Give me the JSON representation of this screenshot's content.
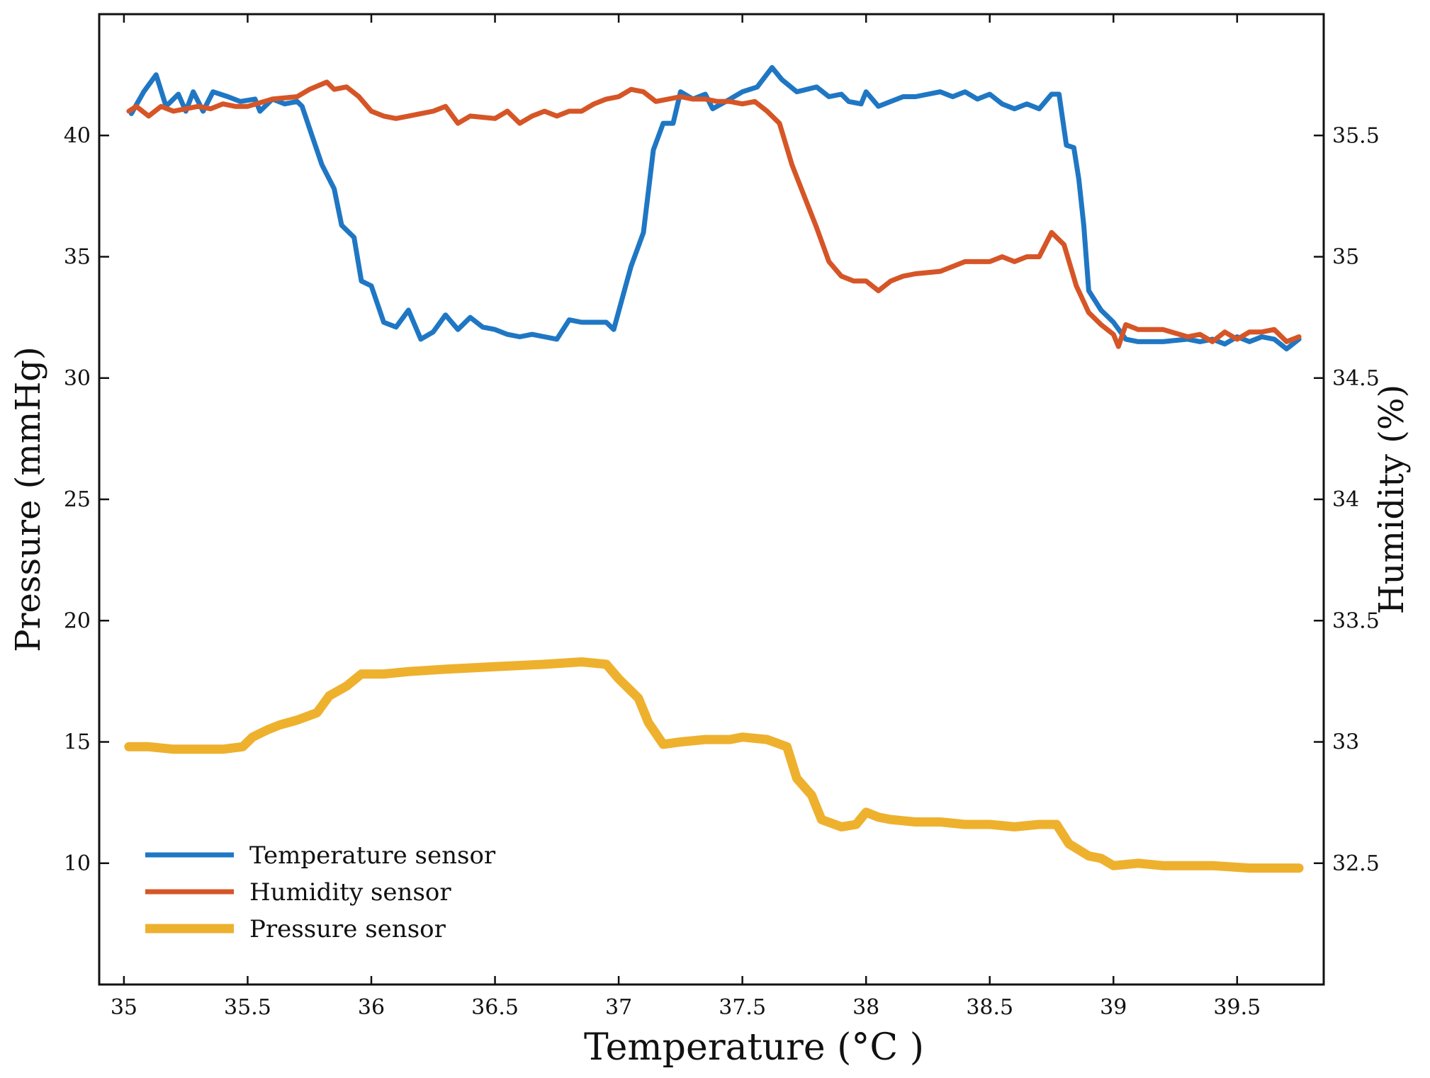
{
  "chart_data": {
    "type": "line",
    "xlabel": "Temperature (°C )",
    "ylabel_left": "Pressure (mmHg)",
    "ylabel_right": "Humidity (%)",
    "xlim": [
      34.9,
      39.85
    ],
    "ylim_left": [
      5,
      45
    ],
    "ylim_right": [
      32,
      36
    ],
    "x_ticks": [
      35,
      35.5,
      36,
      36.5,
      37,
      37.5,
      38,
      38.5,
      39,
      39.5
    ],
    "x_tick_labels": [
      "35",
      "35.5",
      "36",
      "36.5",
      "37",
      "37.5",
      "38",
      "38.5",
      "39",
      "39.5"
    ],
    "y_left_ticks": [
      10,
      15,
      20,
      25,
      30,
      35,
      40
    ],
    "y_left_tick_labels": [
      "10",
      "15",
      "20",
      "25",
      "30",
      "35",
      "40"
    ],
    "y_right_ticks": [
      32.5,
      33,
      33.5,
      34,
      34.5,
      35,
      35.5
    ],
    "y_right_tick_labels": [
      "32.5",
      "33",
      "33.5",
      "34",
      "34.5",
      "35",
      "35.5"
    ],
    "legend_position": "bottom-left",
    "series": [
      {
        "name": "Temperature sensor",
        "axis": "left",
        "color": "#1f77c4",
        "points": [
          [
            35.03,
            40.9
          ],
          [
            35.08,
            41.8
          ],
          [
            35.13,
            42.5
          ],
          [
            35.17,
            41.2
          ],
          [
            35.22,
            41.7
          ],
          [
            35.25,
            41.0
          ],
          [
            35.28,
            41.8
          ],
          [
            35.32,
            41.0
          ],
          [
            35.36,
            41.8
          ],
          [
            35.42,
            41.6
          ],
          [
            35.47,
            41.4
          ],
          [
            35.53,
            41.5
          ],
          [
            35.55,
            41.0
          ],
          [
            35.6,
            41.5
          ],
          [
            35.65,
            41.3
          ],
          [
            35.7,
            41.4
          ],
          [
            35.72,
            41.2
          ],
          [
            35.76,
            40.0
          ],
          [
            35.8,
            38.8
          ],
          [
            35.85,
            37.8
          ],
          [
            35.88,
            36.3
          ],
          [
            35.93,
            35.8
          ],
          [
            35.96,
            34.0
          ],
          [
            36.0,
            33.8
          ],
          [
            36.05,
            32.3
          ],
          [
            36.1,
            32.1
          ],
          [
            36.15,
            32.8
          ],
          [
            36.2,
            31.6
          ],
          [
            36.25,
            31.9
          ],
          [
            36.3,
            32.6
          ],
          [
            36.35,
            32.0
          ],
          [
            36.4,
            32.5
          ],
          [
            36.45,
            32.1
          ],
          [
            36.5,
            32.0
          ],
          [
            36.55,
            31.8
          ],
          [
            36.6,
            31.7
          ],
          [
            36.65,
            31.8
          ],
          [
            36.7,
            31.7
          ],
          [
            36.75,
            31.6
          ],
          [
            36.8,
            32.4
          ],
          [
            36.85,
            32.3
          ],
          [
            36.95,
            32.3
          ],
          [
            36.98,
            32.0
          ],
          [
            37.02,
            33.5
          ],
          [
            37.05,
            34.6
          ],
          [
            37.1,
            36.0
          ],
          [
            37.14,
            39.4
          ],
          [
            37.18,
            40.5
          ],
          [
            37.22,
            40.5
          ],
          [
            37.25,
            41.8
          ],
          [
            37.3,
            41.5
          ],
          [
            37.35,
            41.7
          ],
          [
            37.38,
            41.1
          ],
          [
            37.45,
            41.5
          ],
          [
            37.5,
            41.8
          ],
          [
            37.56,
            42.0
          ],
          [
            37.62,
            42.8
          ],
          [
            37.66,
            42.3
          ],
          [
            37.72,
            41.8
          ],
          [
            37.8,
            42.0
          ],
          [
            37.85,
            41.6
          ],
          [
            37.9,
            41.7
          ],
          [
            37.93,
            41.4
          ],
          [
            37.98,
            41.3
          ],
          [
            38.0,
            41.8
          ],
          [
            38.05,
            41.2
          ],
          [
            38.1,
            41.4
          ],
          [
            38.15,
            41.6
          ],
          [
            38.2,
            41.6
          ],
          [
            38.25,
            41.7
          ],
          [
            38.3,
            41.8
          ],
          [
            38.35,
            41.6
          ],
          [
            38.4,
            41.8
          ],
          [
            38.45,
            41.5
          ],
          [
            38.5,
            41.7
          ],
          [
            38.55,
            41.3
          ],
          [
            38.6,
            41.1
          ],
          [
            38.65,
            41.3
          ],
          [
            38.7,
            41.1
          ],
          [
            38.75,
            41.7
          ],
          [
            38.78,
            41.7
          ],
          [
            38.81,
            39.6
          ],
          [
            38.84,
            39.5
          ],
          [
            38.86,
            38.2
          ],
          [
            38.88,
            36.3
          ],
          [
            38.9,
            33.6
          ],
          [
            38.95,
            32.8
          ],
          [
            39.0,
            32.3
          ],
          [
            39.05,
            31.6
          ],
          [
            39.1,
            31.5
          ],
          [
            39.2,
            31.5
          ],
          [
            39.3,
            31.6
          ],
          [
            39.35,
            31.5
          ],
          [
            39.4,
            31.6
          ],
          [
            39.45,
            31.4
          ],
          [
            39.5,
            31.7
          ],
          [
            39.55,
            31.5
          ],
          [
            39.6,
            31.7
          ],
          [
            39.65,
            31.6
          ],
          [
            39.7,
            31.2
          ],
          [
            39.75,
            31.6
          ]
        ]
      },
      {
        "name": "Humidity sensor",
        "axis": "right",
        "color": "#d65527",
        "points": [
          [
            35.02,
            35.6
          ],
          [
            35.05,
            35.62
          ],
          [
            35.1,
            35.58
          ],
          [
            35.15,
            35.62
          ],
          [
            35.2,
            35.6
          ],
          [
            35.3,
            35.62
          ],
          [
            35.35,
            35.61
          ],
          [
            35.4,
            35.63
          ],
          [
            35.45,
            35.62
          ],
          [
            35.5,
            35.62
          ],
          [
            35.6,
            35.65
          ],
          [
            35.7,
            35.66
          ],
          [
            35.75,
            35.69
          ],
          [
            35.82,
            35.72
          ],
          [
            35.85,
            35.69
          ],
          [
            35.9,
            35.7
          ],
          [
            35.95,
            35.66
          ],
          [
            36.0,
            35.6
          ],
          [
            36.05,
            35.58
          ],
          [
            36.1,
            35.57
          ],
          [
            36.15,
            35.58
          ],
          [
            36.2,
            35.59
          ],
          [
            36.25,
            35.6
          ],
          [
            36.3,
            35.62
          ],
          [
            36.35,
            35.55
          ],
          [
            36.4,
            35.58
          ],
          [
            36.5,
            35.57
          ],
          [
            36.55,
            35.6
          ],
          [
            36.6,
            35.55
          ],
          [
            36.65,
            35.58
          ],
          [
            36.7,
            35.6
          ],
          [
            36.75,
            35.58
          ],
          [
            36.8,
            35.6
          ],
          [
            36.85,
            35.6
          ],
          [
            36.9,
            35.63
          ],
          [
            36.95,
            35.65
          ],
          [
            37.0,
            35.66
          ],
          [
            37.05,
            35.69
          ],
          [
            37.1,
            35.68
          ],
          [
            37.15,
            35.64
          ],
          [
            37.2,
            35.65
          ],
          [
            37.25,
            35.66
          ],
          [
            37.3,
            35.65
          ],
          [
            37.35,
            35.65
          ],
          [
            37.4,
            35.64
          ],
          [
            37.45,
            35.64
          ],
          [
            37.5,
            35.63
          ],
          [
            37.55,
            35.64
          ],
          [
            37.6,
            35.6
          ],
          [
            37.65,
            35.55
          ],
          [
            37.7,
            35.38
          ],
          [
            37.75,
            35.25
          ],
          [
            37.8,
            35.12
          ],
          [
            37.85,
            34.98
          ],
          [
            37.9,
            34.92
          ],
          [
            37.95,
            34.9
          ],
          [
            38.0,
            34.9
          ],
          [
            38.05,
            34.86
          ],
          [
            38.1,
            34.9
          ],
          [
            38.15,
            34.92
          ],
          [
            38.2,
            34.93
          ],
          [
            38.3,
            34.94
          ],
          [
            38.35,
            34.96
          ],
          [
            38.4,
            34.98
          ],
          [
            38.5,
            34.98
          ],
          [
            38.55,
            35.0
          ],
          [
            38.6,
            34.98
          ],
          [
            38.65,
            35.0
          ],
          [
            38.7,
            35.0
          ],
          [
            38.75,
            35.1
          ],
          [
            38.8,
            35.05
          ],
          [
            38.85,
            34.88
          ],
          [
            38.9,
            34.77
          ],
          [
            38.95,
            34.72
          ],
          [
            39.0,
            34.68
          ],
          [
            39.02,
            34.63
          ],
          [
            39.05,
            34.72
          ],
          [
            39.1,
            34.7
          ],
          [
            39.2,
            34.7
          ],
          [
            39.3,
            34.67
          ],
          [
            39.35,
            34.68
          ],
          [
            39.4,
            34.65
          ],
          [
            39.45,
            34.69
          ],
          [
            39.5,
            34.66
          ],
          [
            39.55,
            34.69
          ],
          [
            39.6,
            34.69
          ],
          [
            39.65,
            34.7
          ],
          [
            39.7,
            34.65
          ],
          [
            39.75,
            34.67
          ]
        ]
      },
      {
        "name": "Pressure sensor",
        "axis": "left",
        "color": "#eeb12e",
        "points": [
          [
            35.02,
            14.8
          ],
          [
            35.1,
            14.8
          ],
          [
            35.2,
            14.7
          ],
          [
            35.3,
            14.7
          ],
          [
            35.4,
            14.7
          ],
          [
            35.48,
            14.8
          ],
          [
            35.52,
            15.2
          ],
          [
            35.58,
            15.5
          ],
          [
            35.63,
            15.7
          ],
          [
            35.7,
            15.9
          ],
          [
            35.78,
            16.2
          ],
          [
            35.83,
            16.9
          ],
          [
            35.9,
            17.3
          ],
          [
            35.96,
            17.8
          ],
          [
            36.05,
            17.8
          ],
          [
            36.15,
            17.9
          ],
          [
            36.3,
            18.0
          ],
          [
            36.5,
            18.1
          ],
          [
            36.7,
            18.2
          ],
          [
            36.85,
            18.3
          ],
          [
            36.95,
            18.2
          ],
          [
            37.0,
            17.6
          ],
          [
            37.08,
            16.8
          ],
          [
            37.12,
            15.8
          ],
          [
            37.18,
            14.9
          ],
          [
            37.25,
            15.0
          ],
          [
            37.35,
            15.1
          ],
          [
            37.45,
            15.1
          ],
          [
            37.5,
            15.2
          ],
          [
            37.6,
            15.1
          ],
          [
            37.68,
            14.8
          ],
          [
            37.72,
            13.5
          ],
          [
            37.78,
            12.8
          ],
          [
            37.82,
            11.8
          ],
          [
            37.9,
            11.5
          ],
          [
            37.96,
            11.6
          ],
          [
            38.0,
            12.1
          ],
          [
            38.05,
            11.9
          ],
          [
            38.1,
            11.8
          ],
          [
            38.2,
            11.7
          ],
          [
            38.3,
            11.7
          ],
          [
            38.4,
            11.6
          ],
          [
            38.5,
            11.6
          ],
          [
            38.6,
            11.5
          ],
          [
            38.7,
            11.6
          ],
          [
            38.77,
            11.6
          ],
          [
            38.82,
            10.8
          ],
          [
            38.9,
            10.3
          ],
          [
            38.95,
            10.2
          ],
          [
            39.0,
            9.9
          ],
          [
            39.1,
            10.0
          ],
          [
            39.2,
            9.9
          ],
          [
            39.4,
            9.9
          ],
          [
            39.55,
            9.8
          ],
          [
            39.7,
            9.8
          ],
          [
            39.75,
            9.8
          ]
        ]
      }
    ]
  }
}
